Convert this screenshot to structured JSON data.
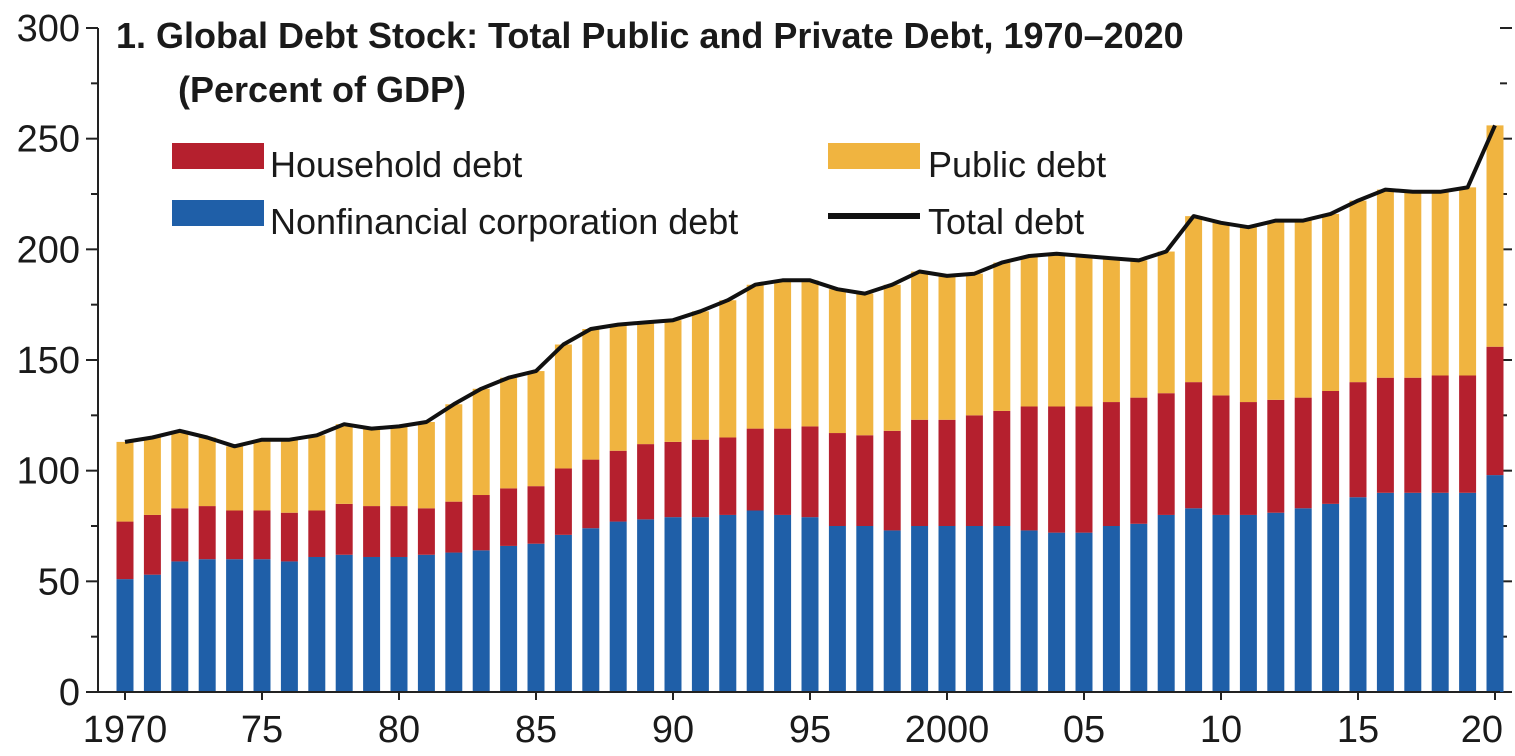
{
  "chart_data": {
    "type": "bar",
    "stacked": true,
    "title": "1. Global Debt Stock: Total Public and Private Debt, 1970–2020",
    "subtitle": "(Percent of GDP)",
    "xlabel": "",
    "ylabel": "",
    "ylim": [
      0,
      300
    ],
    "yticks": [
      0,
      50,
      100,
      150,
      200,
      250,
      300
    ],
    "x": [
      1970,
      1971,
      1972,
      1973,
      1974,
      1975,
      1976,
      1977,
      1978,
      1979,
      1980,
      1981,
      1982,
      1983,
      1984,
      1985,
      1986,
      1987,
      1988,
      1989,
      1990,
      1991,
      1992,
      1993,
      1994,
      1995,
      1996,
      1997,
      1998,
      1999,
      2000,
      2001,
      2002,
      2003,
      2004,
      2005,
      2006,
      2007,
      2008,
      2009,
      2010,
      2011,
      2012,
      2013,
      2014,
      2015,
      2016,
      2017,
      2018,
      2019,
      2020
    ],
    "xtick_values": [
      1970,
      1975,
      1980,
      1985,
      1990,
      1995,
      2000,
      2005,
      2010,
      2015,
      2020
    ],
    "xtick_labels": [
      "1970",
      "75",
      "80",
      "85",
      "90",
      "95",
      "2000",
      "05",
      "10",
      "15",
      "20"
    ],
    "grid": false,
    "legend_position": "top",
    "series": [
      {
        "name": "Nonfinancial corporation debt",
        "color": "#1f5fa8",
        "values": [
          51,
          53,
          59,
          60,
          60,
          60,
          59,
          61,
          62,
          61,
          61,
          62,
          63,
          64,
          66,
          67,
          71,
          74,
          77,
          78,
          79,
          79,
          80,
          82,
          80,
          79,
          75,
          75,
          73,
          75,
          75,
          75,
          75,
          73,
          72,
          72,
          75,
          76,
          80,
          83,
          80,
          80,
          81,
          83,
          85,
          88,
          90,
          90,
          90,
          90,
          98
        ]
      },
      {
        "name": "Household debt",
        "color": "#b5202e",
        "values": [
          26,
          27,
          24,
          24,
          22,
          22,
          22,
          21,
          23,
          23,
          23,
          21,
          23,
          25,
          26,
          26,
          30,
          31,
          32,
          34,
          34,
          35,
          35,
          37,
          39,
          41,
          42,
          41,
          45,
          48,
          48,
          50,
          52,
          56,
          57,
          57,
          56,
          57,
          55,
          57,
          54,
          51,
          51,
          50,
          51,
          52,
          52,
          52,
          53,
          53,
          58
        ]
      },
      {
        "name": "Public debt",
        "color": "#f0b440",
        "values": [
          36,
          35,
          35,
          31,
          29,
          32,
          33,
          34,
          36,
          35,
          36,
          39,
          44,
          48,
          50,
          52,
          56,
          59,
          57,
          55,
          55,
          58,
          62,
          65,
          67,
          66,
          65,
          64,
          66,
          67,
          65,
          64,
          67,
          68,
          69,
          68,
          65,
          62,
          64,
          75,
          78,
          79,
          81,
          80,
          80,
          82,
          85,
          84,
          83,
          85,
          100
        ]
      }
    ],
    "total": {
      "name": "Total debt",
      "color": "#111111",
      "values": [
        113,
        115,
        118,
        115,
        111,
        114,
        114,
        116,
        121,
        119,
        120,
        122,
        130,
        137,
        142,
        145,
        157,
        164,
        166,
        167,
        168,
        172,
        177,
        184,
        186,
        186,
        182,
        180,
        184,
        190,
        188,
        189,
        194,
        197,
        198,
        197,
        196,
        195,
        199,
        215,
        212,
        210,
        213,
        213,
        216,
        222,
        227,
        226,
        226,
        228,
        256
      ]
    }
  }
}
